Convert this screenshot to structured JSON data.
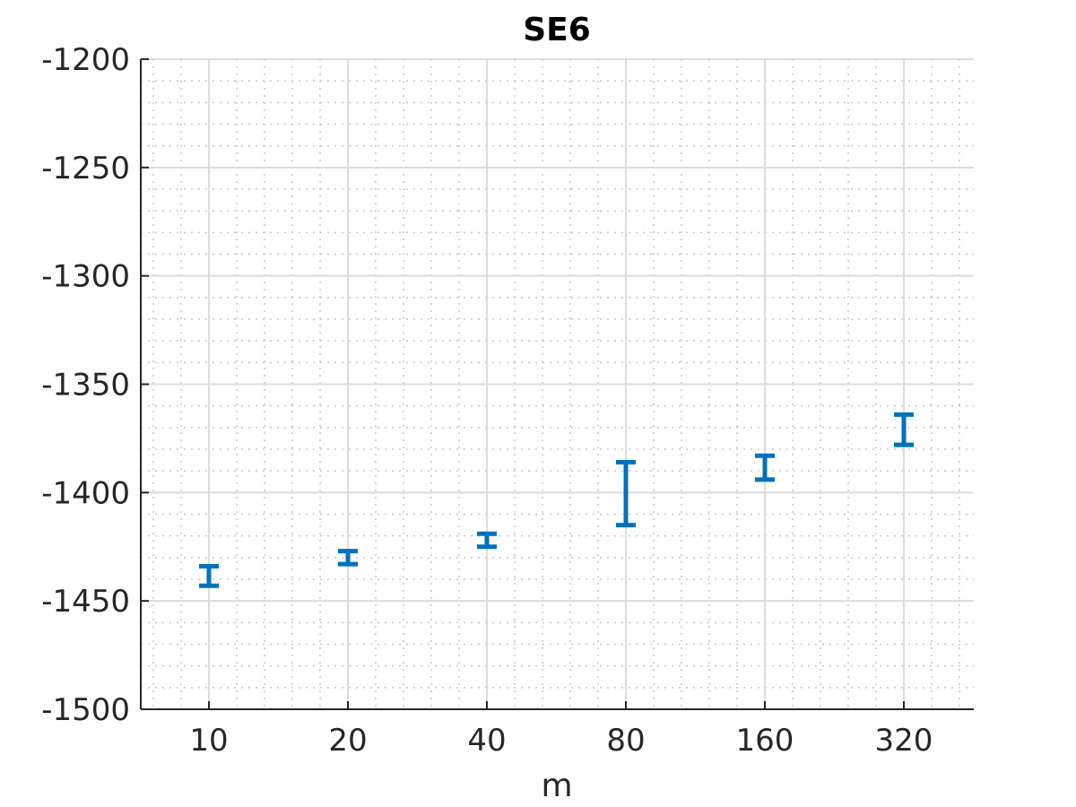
{
  "chart_data": {
    "type": "errorbar",
    "title": "SE6",
    "xlabel": "m",
    "ylabel": "",
    "x_scale": "log2",
    "categories": [
      "10",
      "20",
      "40",
      "80",
      "160",
      "320"
    ],
    "x": [
      10,
      20,
      40,
      80,
      160,
      320
    ],
    "series": [
      {
        "lower": [
          -1443,
          -1433,
          -1425,
          -1415,
          -1394,
          -1378
        ],
        "upper": [
          -1434,
          -1427,
          -1419,
          -1386,
          -1383,
          -1364
        ]
      }
    ],
    "ylim": [
      -1500,
      -1200
    ],
    "yticks": [
      "-1200",
      "-1250",
      "-1300",
      "-1350",
      "-1400",
      "-1450",
      "-1500"
    ],
    "ytick_values": [
      -1200,
      -1250,
      -1300,
      -1350,
      -1400,
      -1450,
      -1500
    ],
    "grid": true,
    "minor_grid": true,
    "color": "#0072BD"
  }
}
